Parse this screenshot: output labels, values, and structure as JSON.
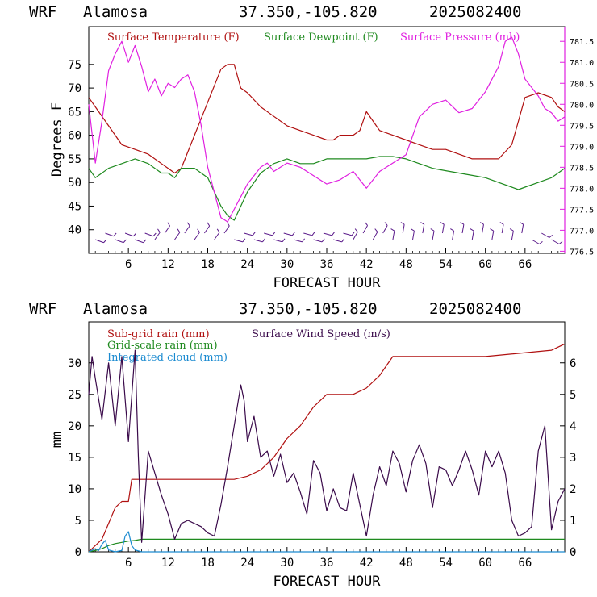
{
  "chart_data": [
    {
      "type": "line",
      "header": {
        "model": "WRF",
        "station": "Alamosa",
        "coords": "37.350,-105.820",
        "date": "2025082400"
      },
      "xlabel": "FORECAST HOUR",
      "ylabel": "Degrees F",
      "xlim": [
        0,
        72
      ],
      "xticks": [
        "6",
        "12",
        "18",
        "24",
        "30",
        "36",
        "42",
        "48",
        "54",
        "60",
        "66"
      ],
      "ylim": [
        35,
        83
      ],
      "yticks": [
        "40",
        "45",
        "50",
        "55",
        "60",
        "65",
        "70",
        "75"
      ],
      "y2lim": [
        776.45,
        781.85
      ],
      "y2ticks": [
        "776.5",
        "777.0",
        "777.5",
        "778.0",
        "778.5",
        "779.0",
        "779.5",
        "780.0",
        "780.5",
        "781.0",
        "781.5"
      ],
      "legend": "top",
      "colors": {
        "temperature": "#b01010",
        "dewpoint": "#1f8a1f",
        "pressure": "#e020e0",
        "wind": "#5a1a8a"
      },
      "series": [
        {
          "name": "Surface Temperature (F)",
          "axis": "left",
          "x": [
            0,
            1,
            3,
            5,
            7,
            9,
            11,
            12,
            13,
            14,
            16,
            18,
            20,
            21,
            22,
            23,
            24,
            26,
            28,
            30,
            32,
            34,
            36,
            37,
            38,
            40,
            41,
            42,
            43,
            44,
            46,
            48,
            50,
            52,
            54,
            56,
            58,
            60,
            62,
            64,
            65,
            66,
            68,
            70,
            71,
            72
          ],
          "y": [
            68,
            66,
            62,
            58,
            57,
            56,
            54,
            53,
            52,
            53,
            60,
            67,
            74,
            75,
            75,
            70,
            69,
            66,
            64,
            62,
            61,
            60,
            59,
            59,
            60,
            60,
            61,
            65,
            63,
            61,
            60,
            59,
            58,
            57,
            57,
            56,
            55,
            55,
            55,
            58,
            63,
            68,
            69,
            68,
            66,
            65
          ]
        },
        {
          "name": "Surface Dewpoint (F)",
          "axis": "left",
          "x": [
            0,
            1,
            2,
            3,
            5,
            7,
            9,
            11,
            12,
            13,
            14,
            16,
            18,
            20,
            21,
            22,
            23,
            24,
            26,
            28,
            30,
            32,
            34,
            36,
            38,
            40,
            42,
            44,
            46,
            48,
            50,
            52,
            54,
            56,
            58,
            60,
            62,
            64,
            65,
            66,
            68,
            70,
            71,
            72
          ],
          "y": [
            53,
            51,
            52,
            53,
            54,
            55,
            54,
            52,
            52,
            51,
            53,
            53,
            51,
            45,
            43,
            42,
            45,
            48,
            52,
            54,
            55,
            54,
            54,
            55,
            55,
            55,
            55,
            55.5,
            55.5,
            55,
            54,
            53,
            52.5,
            52,
            51.5,
            51,
            50,
            49,
            48.5,
            49,
            50,
            51,
            52,
            53
          ]
        },
        {
          "name": "Surface Pressure (mb)",
          "axis": "right",
          "x": [
            0,
            1,
            2,
            3,
            4,
            5,
            6,
            7,
            8,
            9,
            10,
            11,
            12,
            13,
            14,
            15,
            16,
            17,
            18,
            19,
            20,
            21,
            22,
            23,
            24,
            25,
            26,
            27,
            28,
            29,
            30,
            32,
            34,
            36,
            38,
            40,
            42,
            44,
            46,
            48,
            50,
            52,
            54,
            56,
            58,
            60,
            62,
            63,
            64,
            65,
            66,
            68,
            69,
            70,
            71,
            72
          ],
          "y": [
            780.0,
            778.6,
            779.6,
            780.8,
            781.2,
            781.5,
            781.0,
            781.4,
            780.9,
            780.3,
            780.6,
            780.2,
            780.5,
            780.4,
            780.6,
            780.7,
            780.3,
            779.5,
            778.5,
            777.9,
            777.3,
            777.2,
            777.5,
            777.8,
            778.1,
            778.3,
            778.5,
            778.6,
            778.4,
            778.5,
            778.6,
            778.5,
            778.3,
            778.1,
            778.2,
            778.4,
            778.0,
            778.4,
            778.6,
            778.8,
            779.7,
            780.0,
            780.1,
            779.8,
            779.9,
            780.3,
            780.9,
            781.5,
            781.6,
            781.2,
            780.6,
            780.2,
            779.9,
            779.8,
            779.6,
            779.7
          ]
        }
      ]
    },
    {
      "type": "line",
      "header": {
        "model": "WRF",
        "station": "Alamosa",
        "coords": "37.350,-105.820",
        "date": "2025082400"
      },
      "xlabel": "FORECAST HOUR",
      "ylabel": "mm",
      "xlim": [
        0,
        72
      ],
      "xticks": [
        "6",
        "12",
        "18",
        "24",
        "30",
        "36",
        "42",
        "48",
        "54",
        "60",
        "66"
      ],
      "ylim": [
        0,
        36.5
      ],
      "yticks": [
        "0",
        "5",
        "10",
        "15",
        "20",
        "25",
        "30"
      ],
      "y2lim": [
        0,
        7.3
      ],
      "y2ticks": [
        "0",
        "1",
        "2",
        "3",
        "4",
        "5",
        "6"
      ],
      "legend": "top-left",
      "colors": {
        "subgrid": "#b01010",
        "gridscale": "#1f8a1f",
        "cloud": "#1a8ad0",
        "wind": "#3a0a4a"
      },
      "series": [
        {
          "name": "Sub-grid rain (mm)",
          "axis": "left",
          "x": [
            0,
            2,
            4,
            5,
            6,
            6.5,
            22,
            24,
            26,
            28,
            30,
            32,
            34,
            36,
            38,
            40,
            42,
            44,
            46,
            48,
            60,
            70,
            72
          ],
          "y": [
            0,
            2,
            7,
            8,
            8,
            11.5,
            11.5,
            12,
            13,
            15,
            18,
            20,
            23,
            25,
            25,
            25,
            26,
            28,
            31,
            31,
            31,
            32,
            33
          ]
        },
        {
          "name": "Grid-scale rain (mm)",
          "axis": "left",
          "x": [
            0,
            1,
            2,
            3,
            4,
            5,
            6,
            7,
            8,
            72
          ],
          "y": [
            0,
            0.2,
            0.5,
            1,
            1.3,
            1.5,
            1.7,
            1.8,
            2,
            2
          ]
        },
        {
          "name": "Integrated cloud (mm)",
          "axis": "left",
          "x": [
            0,
            1,
            1.5,
            2,
            2.5,
            3,
            4,
            5,
            5.5,
            6,
            6.5,
            7,
            8,
            10,
            72
          ],
          "y": [
            0,
            0.5,
            0.2,
            1.2,
            1.8,
            0.3,
            0,
            0.2,
            2.5,
            3.2,
            1.0,
            0.3,
            0,
            0,
            0
          ]
        },
        {
          "name": "Surface Wind Speed (m/s)",
          "axis": "right",
          "x": [
            0,
            0.5,
            1,
            2,
            3,
            4,
            5,
            6,
            7,
            7.5,
            8,
            9,
            10,
            11,
            12,
            13,
            14,
            15,
            16,
            17,
            18,
            19,
            20,
            21,
            22,
            23,
            23.5,
            24,
            25,
            26,
            27,
            28,
            29,
            30,
            31,
            32,
            33,
            34,
            35,
            36,
            37,
            38,
            39,
            40,
            41,
            42,
            43,
            44,
            45,
            46,
            47,
            48,
            49,
            50,
            51,
            52,
            53,
            54,
            55,
            56,
            57,
            58,
            59,
            60,
            61,
            62,
            63,
            64,
            65,
            66,
            67,
            68,
            69,
            70,
            71,
            72
          ],
          "y": [
            5.0,
            6.2,
            5.5,
            4.2,
            6.0,
            4.0,
            6.2,
            3.5,
            6.4,
            3.0,
            0.3,
            3.2,
            2.5,
            1.8,
            1.2,
            0.4,
            0.9,
            1.0,
            0.9,
            0.8,
            0.6,
            0.5,
            1.5,
            2.7,
            4.0,
            5.3,
            4.8,
            3.5,
            4.3,
            3.0,
            3.2,
            2.4,
            3.1,
            2.2,
            2.5,
            1.9,
            1.2,
            2.9,
            2.5,
            1.3,
            2.0,
            1.4,
            1.3,
            2.5,
            1.5,
            0.5,
            1.8,
            2.7,
            2.1,
            3.2,
            2.8,
            1.9,
            2.9,
            3.4,
            2.8,
            1.4,
            2.7,
            2.6,
            2.1,
            2.6,
            3.2,
            2.6,
            1.8,
            3.2,
            2.7,
            3.2,
            2.5,
            1.0,
            0.5,
            0.6,
            0.8,
            3.2,
            4.0,
            0.7,
            1.6,
            2.0
          ]
        }
      ]
    }
  ]
}
